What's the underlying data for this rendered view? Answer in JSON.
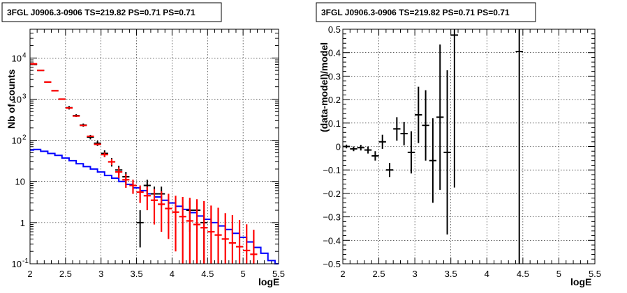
{
  "chart_data": [
    {
      "type": "histogram",
      "title": "3FGL J0906.3-0906 TS=219.82 PS=0.71 PS=0.71",
      "xlabel": "logE",
      "ylabel": "Nb of counts",
      "xlim": [
        2,
        5.5
      ],
      "ylim": [
        0.1,
        50000
      ],
      "yscale": "log",
      "grid": true,
      "x_ticks": [
        "2",
        "2.5",
        "3",
        "3.5",
        "4",
        "4.5",
        "5",
        "5.5"
      ],
      "y_ticks": [
        {
          "value": 0.1,
          "base": "10",
          "exp": "-1"
        },
        {
          "value": 1,
          "base": "1",
          "exp": ""
        },
        {
          "value": 10,
          "base": "10",
          "exp": ""
        },
        {
          "value": 100,
          "base": "10",
          "exp": "2"
        },
        {
          "value": 1000,
          "base": "10",
          "exp": "3"
        },
        {
          "value": 10000,
          "base": "10",
          "exp": "4"
        }
      ],
      "series": [
        {
          "color": "#0000ff",
          "style": "step",
          "bins": [
            [
              2.0,
              2.05,
              58
            ],
            [
              2.05,
              2.15,
              60
            ],
            [
              2.15,
              2.25,
              54
            ],
            [
              2.25,
              2.35,
              48
            ],
            [
              2.35,
              2.45,
              43
            ],
            [
              2.45,
              2.55,
              37
            ],
            [
              2.55,
              2.65,
              32
            ],
            [
              2.65,
              2.75,
              27
            ],
            [
              2.75,
              2.85,
              23
            ],
            [
              2.85,
              2.95,
              20
            ],
            [
              2.95,
              3.05,
              17
            ],
            [
              3.05,
              3.15,
              14
            ],
            [
              3.15,
              3.25,
              12
            ],
            [
              3.25,
              3.35,
              10
            ],
            [
              3.35,
              3.45,
              8.5
            ],
            [
              3.45,
              3.55,
              7
            ],
            [
              3.55,
              3.65,
              6
            ],
            [
              3.65,
              3.75,
              5
            ],
            [
              3.75,
              3.85,
              4.2
            ],
            [
              3.85,
              3.95,
              3.5
            ],
            [
              3.95,
              4.05,
              3
            ],
            [
              4.05,
              4.15,
              2.5
            ],
            [
              4.15,
              4.25,
              2.1
            ],
            [
              4.25,
              4.35,
              1.75
            ],
            [
              4.35,
              4.45,
              1.45
            ],
            [
              4.45,
              4.55,
              1.2
            ],
            [
              4.55,
              4.65,
              1.0
            ],
            [
              4.65,
              4.75,
              0.83
            ],
            [
              4.75,
              4.85,
              0.68
            ],
            [
              4.85,
              4.95,
              0.55
            ],
            [
              4.95,
              5.05,
              0.44
            ],
            [
              5.05,
              5.15,
              0.34
            ],
            [
              5.15,
              5.25,
              0.25
            ],
            [
              5.25,
              5.35,
              0.18
            ],
            [
              5.35,
              5.45,
              0.12
            ],
            [
              5.45,
              5.5,
              0.1
            ]
          ]
        },
        {
          "color": "#000000",
          "style": "errorbar",
          "points": [
            [
              2.05,
              7000,
              0,
              0
            ],
            [
              2.15,
              5000,
              0,
              0
            ],
            [
              2.25,
              2600,
              0,
              0
            ],
            [
              2.35,
              1600,
              0,
              0
            ],
            [
              2.45,
              1000,
              0,
              0
            ],
            [
              2.55,
              620,
              60,
              60
            ],
            [
              2.65,
              400,
              30,
              30
            ],
            [
              2.75,
              235,
              20,
              20
            ],
            [
              2.85,
              120,
              15,
              15
            ],
            [
              2.95,
              85,
              12,
              12
            ],
            [
              3.05,
              48,
              9,
              9
            ],
            [
              3.15,
              30,
              7,
              7
            ],
            [
              3.25,
              19,
              5,
              5
            ],
            [
              3.35,
              13,
              4,
              4
            ],
            [
              3.45,
              8,
              3,
              3
            ],
            [
              3.55,
              1,
              0.75,
              1
            ],
            [
              3.65,
              8,
              3,
              3
            ],
            [
              3.75,
              5,
              2.5,
              2.5
            ],
            [
              3.85,
              5,
              2.5,
              2.5
            ],
            [
              4.25,
              2,
              1.4,
              1.4
            ],
            [
              4.35,
              2,
              1.4,
              1.4
            ],
            [
              4.45,
              1,
              0.9,
              1.0
            ]
          ],
          "x_half_width": 0.05
        },
        {
          "color": "#ff0000",
          "style": "errorbar",
          "points": [
            [
              2.05,
              7200,
              400,
              400
            ],
            [
              2.15,
              5000,
              0,
              0
            ],
            [
              2.25,
              2600,
              0,
              0
            ],
            [
              2.35,
              1600,
              0,
              0
            ],
            [
              2.45,
              1000,
              0,
              0
            ],
            [
              2.55,
              610,
              0,
              0
            ],
            [
              2.65,
              390,
              0,
              0
            ],
            [
              2.75,
              230,
              0,
              0
            ],
            [
              2.85,
              125,
              0,
              0
            ],
            [
              2.95,
              80,
              0,
              0
            ],
            [
              3.05,
              45,
              6,
              6
            ],
            [
              3.15,
              30,
              5,
              5
            ],
            [
              3.25,
              17,
              5,
              5
            ],
            [
              3.35,
              11,
              4,
              4
            ],
            [
              3.45,
              8,
              3,
              3
            ],
            [
              3.55,
              5.5,
              2.5,
              2.5
            ],
            [
              3.65,
              4.5,
              2.5,
              3
            ],
            [
              3.75,
              3.5,
              2.6,
              3
            ],
            [
              3.85,
              2.8,
              2.2,
              3
            ],
            [
              3.95,
              2.2,
              1.8,
              2.8
            ],
            [
              4.05,
              1.8,
              1.6,
              2.7
            ],
            [
              4.15,
              1.4,
              1.3,
              2.8
            ],
            [
              4.25,
              1.1,
              1.0,
              2.9
            ],
            [
              4.35,
              0.9,
              0.8,
              2.8
            ],
            [
              4.45,
              0.75,
              0.65,
              2.6
            ],
            [
              4.55,
              0.6,
              0.5,
              2.0
            ],
            [
              4.65,
              0.5,
              0.4,
              1.8
            ],
            [
              4.75,
              0.4,
              0.3,
              1.3
            ],
            [
              4.85,
              0.32,
              0.22,
              1.2
            ],
            [
              4.95,
              0.26,
              0.16,
              0.9
            ],
            [
              5.05,
              0.21,
              0.11,
              0.7
            ],
            [
              5.15,
              0.17,
              0.07,
              0.5
            ]
          ],
          "x_half_width": 0.05
        }
      ]
    },
    {
      "type": "scatter",
      "title": "3FGL J0906.3-0906 TS=219.82 PS=0.71 PS=0.71",
      "xlabel": "logE",
      "ylabel": "(data-model)/model",
      "xlim": [
        2,
        5.5
      ],
      "ylim": [
        -0.5,
        0.5
      ],
      "grid": true,
      "x_ticks": [
        "2",
        "2.5",
        "3",
        "3.5",
        "4",
        "4.5",
        "5",
        "5.5"
      ],
      "y_ticks": [
        "0.5",
        "0.4",
        "0.3",
        "0.2",
        "0.1",
        "0",
        "−0.1",
        "−0.2",
        "−0.3",
        "−0.4",
        "−0.5"
      ],
      "series": [
        {
          "color": "#000000",
          "style": "errorbar",
          "x_half_width": 0.05,
          "points": [
            [
              2.05,
              0.0,
              0.008,
              0.008
            ],
            [
              2.15,
              -0.01,
              0.01,
              0.01
            ],
            [
              2.25,
              -0.005,
              0.012,
              0.012
            ],
            [
              2.35,
              -0.015,
              0.015,
              0.015
            ],
            [
              2.45,
              -0.04,
              0.02,
              0.02
            ],
            [
              2.55,
              0.02,
              0.03,
              0.03
            ],
            [
              2.65,
              -0.1,
              0.03,
              0.03
            ],
            [
              2.75,
              0.075,
              0.05,
              0.05
            ],
            [
              2.85,
              0.055,
              0.05,
              0.05
            ],
            [
              2.95,
              -0.025,
              0.09,
              0.09
            ],
            [
              3.05,
              0.135,
              0.12,
              0.12
            ],
            [
              3.15,
              0.09,
              0.15,
              0.15
            ],
            [
              3.25,
              -0.06,
              0.18,
              0.18
            ],
            [
              3.35,
              0.125,
              0.31,
              0.31
            ],
            [
              3.45,
              -0.025,
              0.35,
              0.35
            ],
            [
              3.55,
              0.475,
              0.65,
              0.03
            ],
            [
              4.45,
              0.405,
              0.92,
              0.1
            ]
          ]
        }
      ]
    }
  ]
}
